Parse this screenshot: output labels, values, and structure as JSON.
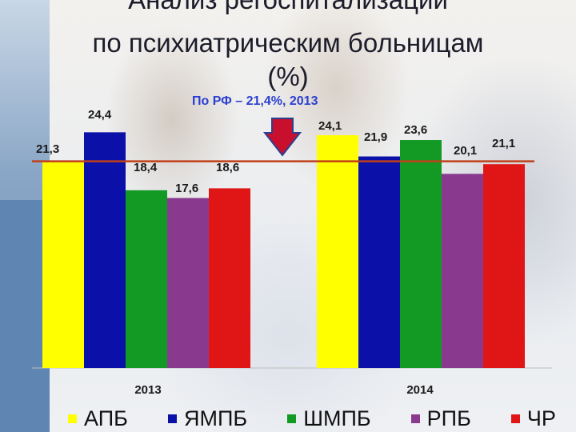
{
  "title_lines": [
    "Анализ регоспитализаций",
    "по психиатрическим больницам",
    "(%)"
  ],
  "reference_annotation": "По РФ – 21,4%, 2013",
  "chart_data": {
    "type": "bar",
    "categories": [
      "2013",
      "2014"
    ],
    "series": [
      {
        "name": "АПБ",
        "color": "#ffff00",
        "values": [
          21.3,
          24.1
        ],
        "labels": [
          "21,3",
          "24,1"
        ]
      },
      {
        "name": "ЯМПБ",
        "color": "#0a10a8",
        "values": [
          24.4,
          21.9
        ],
        "labels": [
          "24,4",
          "21,9"
        ]
      },
      {
        "name": "ШМПБ",
        "color": "#129a24",
        "values": [
          18.4,
          23.6
        ],
        "labels": [
          "18,4",
          "23,6"
        ]
      },
      {
        "name": "РПБ",
        "color": "#8a3a8e",
        "values": [
          17.6,
          20.1
        ],
        "labels": [
          "17,6",
          "20,1"
        ]
      },
      {
        "name": "ЧР",
        "color": "#e01616",
        "values": [
          18.6,
          21.1
        ],
        "labels": [
          "18,6",
          "21,1"
        ]
      }
    ],
    "reference_line": {
      "value": 21.4,
      "color": "#c0401a"
    },
    "marker": {
      "type": "arrow-down",
      "color": "#c8102e"
    },
    "ylim": [
      0,
      26.5
    ],
    "grid": false,
    "legend_position": "bottom"
  }
}
